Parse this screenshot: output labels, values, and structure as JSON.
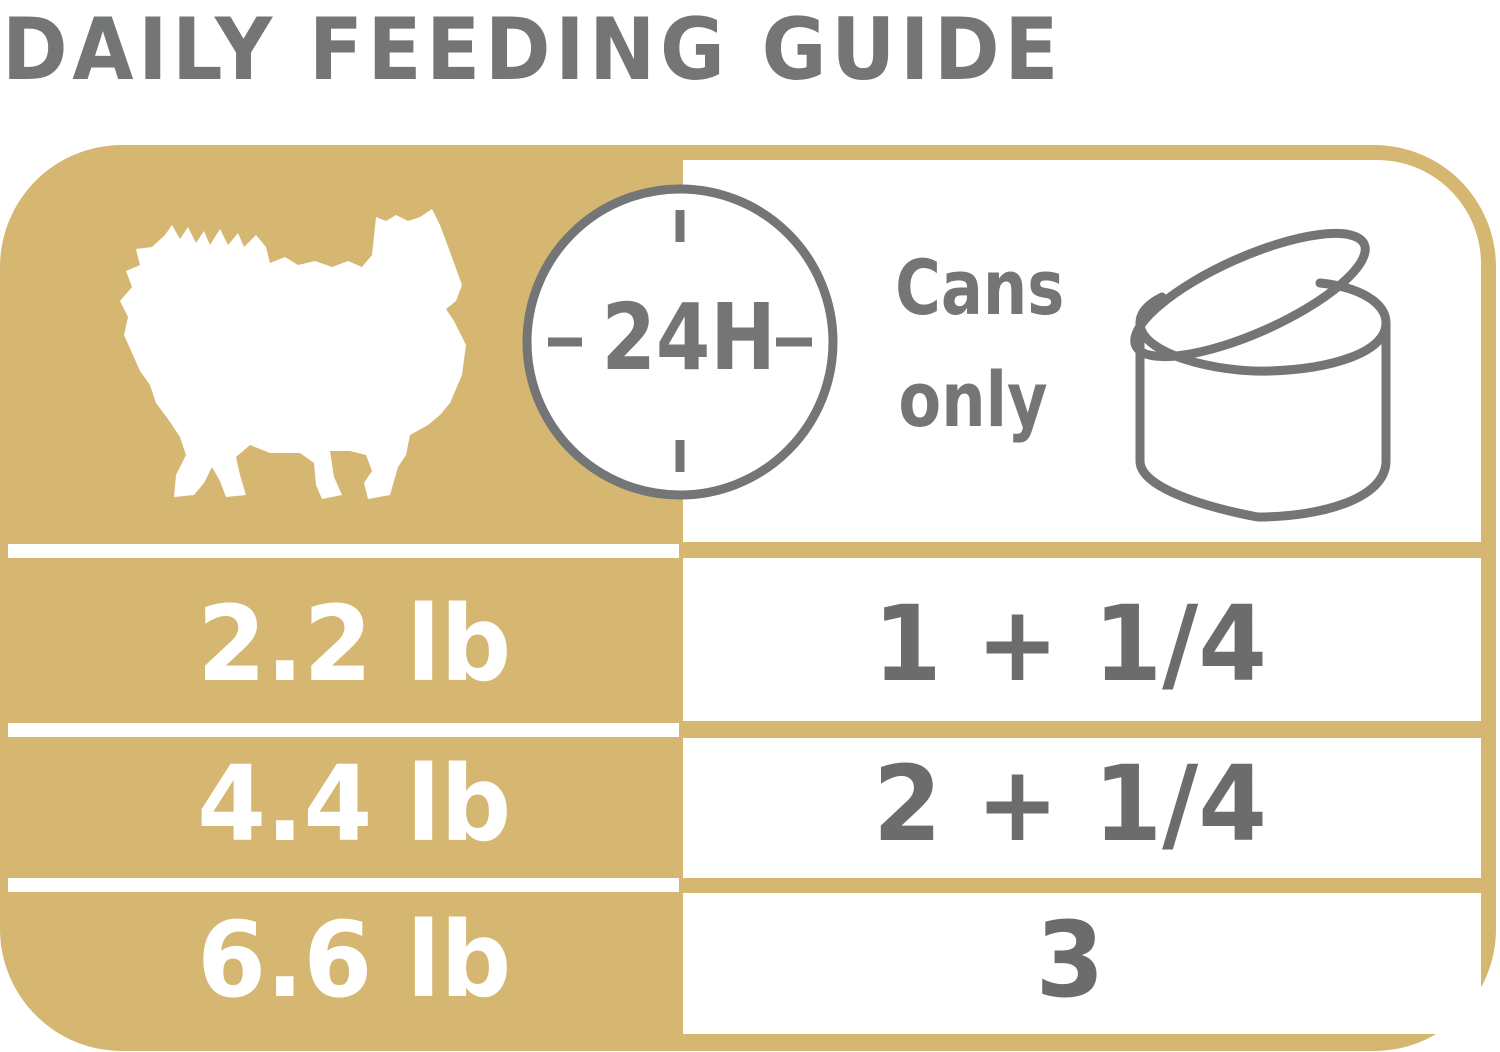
{
  "title": "DAILY FEEDING GUIDE",
  "period_label": "24H",
  "unit_label_line1": "Cans",
  "unit_label_line2": "only",
  "colors": {
    "gold": "#d5b772",
    "gray": "#737576",
    "white": "#ffffff"
  },
  "icons": [
    "dog-silhouette-icon",
    "clock-icon",
    "can-icon"
  ],
  "rows": [
    {
      "weight": "2.2 lb",
      "amount": "1 + 1/4"
    },
    {
      "weight": "4.4 lb",
      "amount": "2 + 1/4"
    },
    {
      "weight": "6.6 lb",
      "amount": "3"
    }
  ]
}
